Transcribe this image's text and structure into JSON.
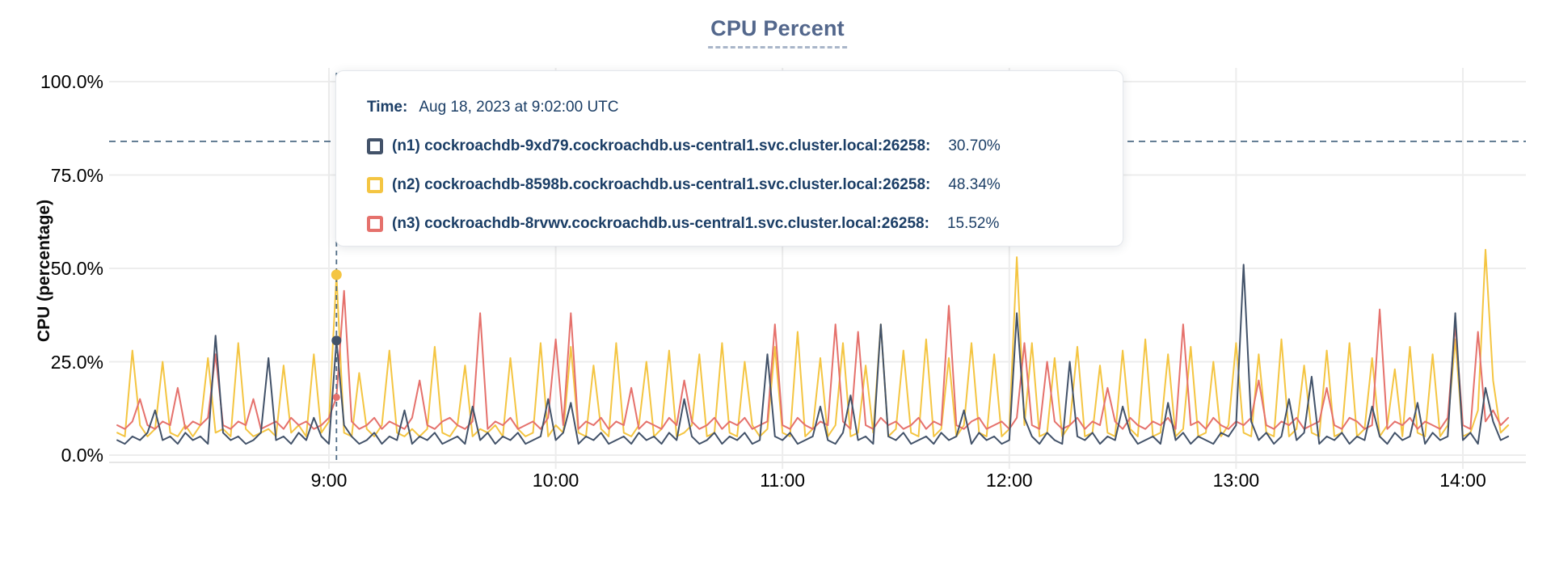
{
  "title": "CPU Percent",
  "axis": {
    "y_title": "CPU (percentage)"
  },
  "tooltip": {
    "time_label": "Time:",
    "time_value": "Aug 18, 2023 at 9:02:00 UTC",
    "rows": [
      {
        "name": "(n1) cockroachdb-9xd79.cockroachdb.us-central1.svc.cluster.local:26258:",
        "value": "30.70%",
        "color": "#425269"
      },
      {
        "name": "(n2) cockroachdb-8598b.cockroachdb.us-central1.svc.cluster.local:26258:",
        "value": "48.34%",
        "color": "#F4C542"
      },
      {
        "name": "(n3) cockroachdb-8rvwv.cockroachdb.us-central1.svc.cluster.local:26258:",
        "value": "15.52%",
        "color": "#E5716C"
      }
    ]
  },
  "colors": {
    "title": "#53678c",
    "grid": "#ededed",
    "axis_line": "#e6e6e6",
    "dashed_guides": "#4e6b85",
    "n1": "#425269",
    "n2": "#F4C542",
    "n3": "#E5716C"
  },
  "chart_data": {
    "type": "line",
    "title": "CPU Percent",
    "xlabel": "",
    "ylabel": "CPU (percentage)",
    "ylim": [
      0,
      100
    ],
    "grid": true,
    "legend_position": "tooltip-only",
    "y_ticks": [
      {
        "label": "100.0%",
        "value": 100
      },
      {
        "label": "75.0%",
        "value": 75
      },
      {
        "label": "50.0%",
        "value": 50
      },
      {
        "label": "25.0%",
        "value": 25
      },
      {
        "label": "0.0%",
        "value": 0
      }
    ],
    "x_ticks": [
      {
        "label": "9:00",
        "minutes": 540
      },
      {
        "label": "10:00",
        "minutes": 600
      },
      {
        "label": "11:00",
        "minutes": 660
      },
      {
        "label": "12:00",
        "minutes": 720
      },
      {
        "label": "13:00",
        "minutes": 780
      },
      {
        "label": "14:00",
        "minutes": 840
      }
    ],
    "x_start_minutes": 484,
    "x_step_minutes": 2,
    "threshold_percent": 84,
    "cursor": {
      "time_minutes": 542,
      "time_text": "Aug 18, 2023 at 9:02:00 UTC"
    },
    "series": [
      {
        "name": "(n1) cockroachdb-9xd79.cockroachdb.us-central1.svc.cluster.local:26258",
        "color": "#425269",
        "cursor_value": 30.7,
        "values": [
          4,
          3,
          5,
          4,
          6,
          12,
          4,
          5,
          3,
          6,
          4,
          5,
          3,
          32,
          6,
          4,
          5,
          3,
          4,
          6,
          26,
          4,
          5,
          3,
          6,
          4,
          10,
          5,
          3,
          30.7,
          8,
          5,
          3,
          4,
          6,
          3,
          5,
          4,
          12,
          3,
          5,
          4,
          6,
          3,
          4,
          5,
          3,
          13,
          4,
          6,
          3,
          5,
          4,
          6,
          3,
          4,
          5,
          15,
          4,
          6,
          14,
          3,
          5,
          4,
          6,
          3,
          4,
          5,
          3,
          6,
          4,
          5,
          3,
          6,
          4,
          15,
          5,
          3,
          4,
          6,
          3,
          5,
          4,
          6,
          3,
          4,
          27,
          5,
          4,
          6,
          3,
          4,
          5,
          13,
          4,
          3,
          6,
          16,
          4,
          5,
          3,
          35,
          5,
          4,
          6,
          3,
          4,
          5,
          3,
          6,
          4,
          5,
          12,
          3,
          6,
          4,
          5,
          3,
          4,
          38,
          10,
          5,
          3,
          6,
          4,
          3,
          25,
          5,
          4,
          6,
          3,
          5,
          4,
          13,
          6,
          3,
          4,
          5,
          3,
          14,
          4,
          6,
          3,
          5,
          4,
          3,
          6,
          5,
          8,
          51,
          9,
          4,
          6,
          3,
          5,
          15,
          4,
          6,
          21,
          3,
          5,
          4,
          6,
          3,
          5,
          4,
          13,
          5,
          3,
          6,
          4,
          5,
          14,
          3,
          6,
          4,
          5,
          38,
          4,
          6,
          3,
          18,
          9,
          4,
          5
        ]
      },
      {
        "name": "(n2) cockroachdb-8598b.cockroachdb.us-central1.svc.cluster.local:26258",
        "color": "#F4C542",
        "cursor_value": 48.34,
        "values": [
          6,
          5,
          28,
          8,
          5,
          7,
          25,
          6,
          5,
          8,
          5,
          8,
          26,
          6,
          7,
          5,
          30,
          7,
          5,
          6,
          7,
          5,
          24,
          6,
          8,
          5,
          27,
          6,
          9,
          48.3,
          6,
          5,
          22,
          7,
          5,
          8,
          28,
          6,
          5,
          7,
          5,
          7,
          29,
          6,
          5,
          8,
          24,
          5,
          7,
          6,
          8,
          5,
          26,
          7,
          5,
          6,
          30,
          5,
          8,
          6,
          29,
          6,
          5,
          24,
          7,
          5,
          30,
          6,
          5,
          8,
          25,
          5,
          7,
          28,
          5,
          6,
          8,
          27,
          5,
          6,
          30,
          6,
          5,
          25,
          8,
          5,
          7,
          29,
          6,
          5,
          33,
          5,
          7,
          26,
          5,
          8,
          30,
          5,
          6,
          24,
          6,
          35,
          5,
          7,
          28,
          6,
          5,
          31,
          5,
          7,
          26,
          5,
          8,
          30,
          6,
          5,
          27,
          5,
          7,
          53,
          8,
          30,
          5,
          6,
          26,
          5,
          8,
          29,
          5,
          6,
          24,
          6,
          5,
          28,
          7,
          5,
          31,
          5,
          6,
          27,
          5,
          7,
          29,
          5,
          6,
          25,
          5,
          8,
          30,
          6,
          5,
          27,
          6,
          5,
          31,
          5,
          7,
          24,
          6,
          5,
          28,
          5,
          6,
          30,
          5,
          7,
          26,
          5,
          8,
          23,
          5,
          29,
          6,
          5,
          27,
          5,
          8,
          31,
          5,
          6,
          12,
          55,
          20,
          6,
          8
        ]
      },
      {
        "name": "(n3) cockroachdb-8rvwv.cockroachdb.us-central1.svc.cluster.local:26258",
        "color": "#E5716C",
        "cursor_value": 15.52,
        "values": [
          8,
          7,
          9,
          15,
          8,
          7,
          9,
          8,
          18,
          7,
          9,
          8,
          10,
          27,
          8,
          7,
          9,
          8,
          15,
          7,
          8,
          9,
          7,
          10,
          8,
          9,
          7,
          8,
          10,
          15.5,
          44,
          9,
          7,
          8,
          10,
          7,
          9,
          8,
          7,
          10,
          20,
          8,
          7,
          9,
          10,
          8,
          7,
          9,
          38,
          7,
          9,
          8,
          10,
          7,
          8,
          9,
          7,
          10,
          31,
          8,
          38,
          7,
          9,
          8,
          10,
          7,
          9,
          8,
          18,
          7,
          9,
          8,
          7,
          10,
          8,
          20,
          9,
          7,
          8,
          10,
          7,
          9,
          8,
          10,
          7,
          8,
          9,
          35,
          8,
          7,
          10,
          8,
          7,
          9,
          8,
          35,
          9,
          7,
          33,
          8,
          7,
          10,
          8,
          9,
          7,
          8,
          10,
          7,
          9,
          8,
          40,
          8,
          7,
          9,
          10,
          7,
          8,
          9,
          7,
          10,
          30,
          8,
          7,
          25,
          9,
          7,
          8,
          10,
          7,
          9,
          8,
          18,
          9,
          7,
          10,
          8,
          7,
          9,
          8,
          10,
          7,
          35,
          8,
          9,
          7,
          10,
          8,
          7,
          9,
          8,
          10,
          20,
          8,
          7,
          9,
          8,
          10,
          7,
          8,
          9,
          18,
          8,
          7,
          10,
          9,
          7,
          8,
          39,
          7,
          9,
          8,
          10,
          7,
          9,
          8,
          7,
          10,
          35,
          8,
          7,
          33,
          9,
          12,
          8,
          10
        ]
      }
    ]
  }
}
